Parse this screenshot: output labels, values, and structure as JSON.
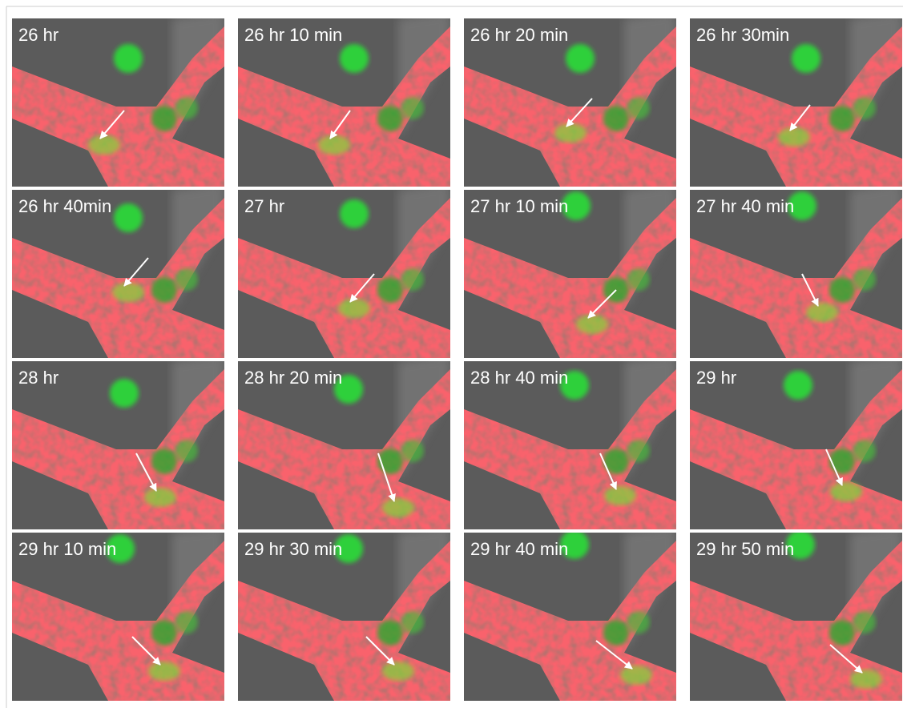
{
  "panels": [
    "26 hr",
    "26 hr 10 min",
    "26 hr 20 min",
    "26 hr 30min",
    "26 hr 40min",
    "27 hr",
    "27 hr 10 min",
    "27 hr 40 min",
    "28 hr",
    "28 hr 20 min",
    "28 hr 40 min",
    "29 hr",
    "29 hr 10 min",
    "29 hr 30 min",
    "29 hr 40 min",
    "29 hr 50 min"
  ]
}
